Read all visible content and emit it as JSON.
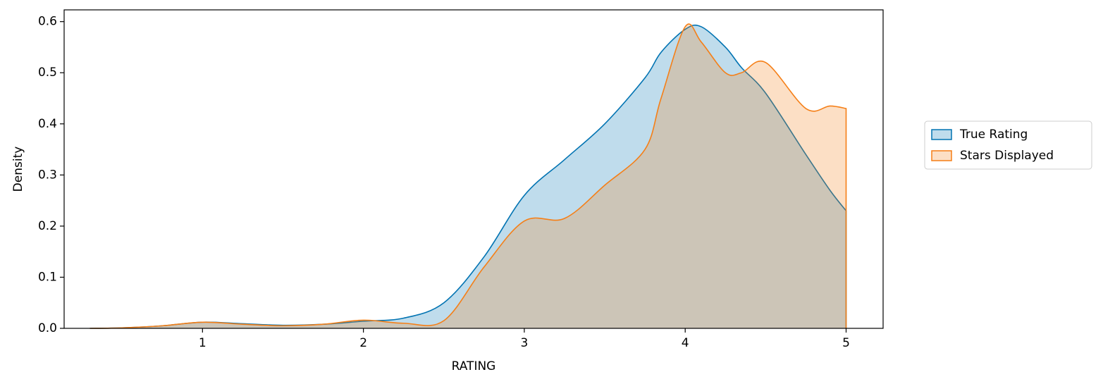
{
  "chart_data": {
    "type": "kde",
    "x_label": "RATING",
    "y_label": "Density",
    "x": [
      0.3,
      0.5,
      0.75,
      1,
      1.25,
      1.5,
      1.75,
      2,
      2.25,
      2.5,
      2.75,
      3,
      3.25,
      3.5,
      3.75,
      3.85,
      4,
      4.1,
      4.25,
      4.35,
      4.5,
      4.75,
      4.9,
      5
    ],
    "series": [
      {
        "name": "True Rating",
        "color": "#0173b2",
        "values": [
          0,
          0.001,
          0.005,
          0.012,
          0.009,
          0.006,
          0.008,
          0.014,
          0.02,
          0.05,
          0.14,
          0.26,
          0.33,
          0.4,
          0.49,
          0.54,
          0.585,
          0.59,
          0.55,
          0.51,
          0.46,
          0.34,
          0.27,
          0.23
        ]
      },
      {
        "name": "Stars Displayed",
        "color": "#f57f17",
        "values": [
          0,
          0.001,
          0.005,
          0.012,
          0.008,
          0.005,
          0.008,
          0.016,
          0.01,
          0.015,
          0.12,
          0.21,
          0.215,
          0.28,
          0.35,
          0.45,
          0.59,
          0.56,
          0.5,
          0.5,
          0.52,
          0.43,
          0.435,
          0.43
        ]
      }
    ],
    "xlim": [
      0.14,
      5.23
    ],
    "ylim": [
      0,
      0.623
    ],
    "xticks": [
      1,
      2,
      3,
      4,
      5
    ],
    "yticks": [
      {
        "value": 0,
        "label": "0.0"
      },
      0.1,
      0.2,
      0.3,
      0.4,
      0.5,
      0.6
    ],
    "legend": "outside right"
  }
}
